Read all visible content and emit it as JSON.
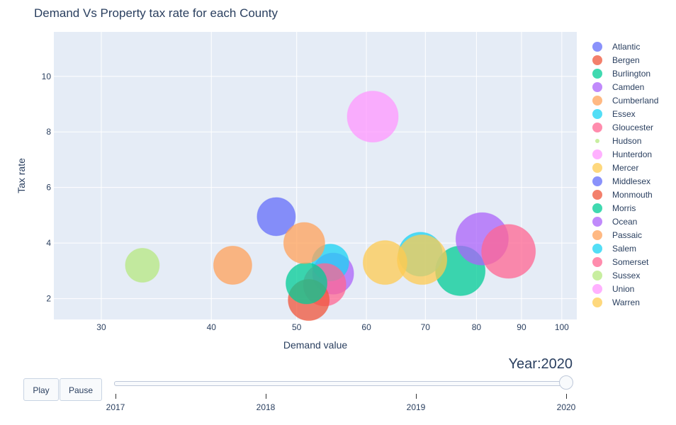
{
  "chart_data": {
    "type": "scatter",
    "title": "Demand Vs Property tax rate for each County",
    "xlabel": "Demand value",
    "ylabel": "Tax rate",
    "xscale": "log",
    "xlim": [
      26.5,
      104
    ],
    "ylim": [
      1.25,
      11.6
    ],
    "x_ticks": [
      30,
      40,
      50,
      60,
      70,
      80,
      90,
      100
    ],
    "y_ticks": [
      2,
      4,
      6,
      8,
      10
    ],
    "grid": true,
    "legend_position": "right",
    "series": [
      {
        "name": "Atlantic",
        "color": "#636efa",
        "points": []
      },
      {
        "name": "Bergen",
        "color": "#EF553B",
        "points": []
      },
      {
        "name": "Burlington",
        "color": "#00cc96",
        "points": []
      },
      {
        "name": "Camden",
        "color": "#ab63fa",
        "points": [
          {
            "x": 55.0,
            "y": 2.9,
            "size": 29
          }
        ]
      },
      {
        "name": "Cumberland",
        "color": "#FFA15A",
        "points": [
          {
            "x": 42.3,
            "y": 3.2,
            "size": 27
          }
        ]
      },
      {
        "name": "Essex",
        "color": "#19d3f3",
        "points": [
          {
            "x": 54.6,
            "y": 3.3,
            "size": 26
          }
        ]
      },
      {
        "name": "Gloucester",
        "color": "#FF6692",
        "points": [
          {
            "x": 53.8,
            "y": 2.5,
            "size": 30
          }
        ]
      },
      {
        "name": "Hudson",
        "color": "#B6E880",
        "points": []
      },
      {
        "name": "Hunterdon",
        "color": "#FF97FF",
        "points": []
      },
      {
        "name": "Mercer",
        "color": "#FECB52",
        "points": []
      },
      {
        "name": "Middlesex",
        "color": "#636efa",
        "points": [
          {
            "x": 47.4,
            "y": 4.95,
            "size": 27
          }
        ]
      },
      {
        "name": "Monmouth",
        "color": "#EF553B",
        "points": [
          {
            "x": 51.6,
            "y": 1.95,
            "size": 29
          }
        ]
      },
      {
        "name": "Morris",
        "color": "#00cc96",
        "points": [
          {
            "x": 51.3,
            "y": 2.55,
            "size": 29
          },
          {
            "x": 76.7,
            "y": 3.0,
            "size": 35
          }
        ]
      },
      {
        "name": "Ocean",
        "color": "#ab63fa",
        "points": [
          {
            "x": 81.2,
            "y": 4.15,
            "size": 37
          }
        ]
      },
      {
        "name": "Passaic",
        "color": "#FFA15A",
        "points": [
          {
            "x": 51.0,
            "y": 4.0,
            "size": 29
          }
        ]
      },
      {
        "name": "Salem",
        "color": "#19d3f3",
        "points": [
          {
            "x": 69.1,
            "y": 3.6,
            "size": 31
          }
        ]
      },
      {
        "name": "Somerset",
        "color": "#FF6692",
        "points": [
          {
            "x": 87.0,
            "y": 3.7,
            "size": 38
          }
        ]
      },
      {
        "name": "Sussex",
        "color": "#B6E880",
        "points": [
          {
            "x": 33.4,
            "y": 3.2,
            "size": 24
          }
        ]
      },
      {
        "name": "Union",
        "color": "#FF97FF",
        "points": [
          {
            "x": 61.0,
            "y": 8.55,
            "size": 36
          }
        ]
      },
      {
        "name": "Warren",
        "color": "#FECB52",
        "points": [
          {
            "x": 63.0,
            "y": 3.3,
            "size": 31
          },
          {
            "x": 69.4,
            "y": 3.4,
            "size": 35
          }
        ]
      }
    ]
  },
  "controls": {
    "play_label": "Play",
    "pause_label": "Pause",
    "slider_prefix": "Year:",
    "slider_value": "2020",
    "slider_steps": [
      "2017",
      "2018",
      "2019",
      "2020"
    ],
    "slider_active_index": 3
  }
}
